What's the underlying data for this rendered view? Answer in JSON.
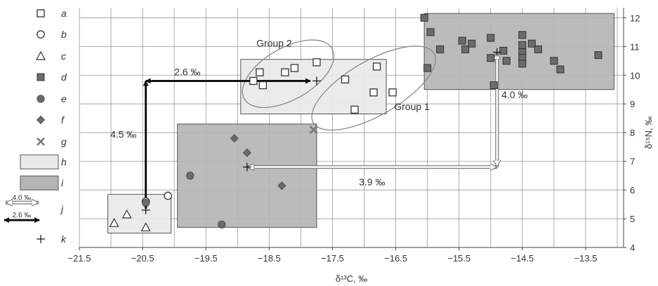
{
  "chart_data": {
    "type": "scatter",
    "xlabel": "δ¹³C, ‰",
    "ylabel": "δ¹⁵N, ‰",
    "xlim": [
      -21.5,
      -12.9
    ],
    "ylim": [
      4,
      12.35
    ],
    "xticks": [
      -21.5,
      -20.5,
      -19.5,
      -18.5,
      -17.5,
      -16.5,
      -15.5,
      -14.5,
      -13.5
    ],
    "xtick_labels": [
      "−21.5",
      "−20.5",
      "−19.5",
      "−18.5",
      "−17.5",
      "−16.5",
      "−15.5",
      "−14.5",
      "−13.5"
    ],
    "yticks": [
      4,
      5,
      6,
      7,
      8,
      9,
      10,
      11,
      12
    ],
    "ytick_labels": [
      "4",
      "5",
      "6",
      "7",
      "8",
      "9",
      "10",
      "11",
      "12"
    ],
    "x_grid_step": 0.5,
    "grid": true,
    "legend": {
      "position": "left",
      "entries": [
        {
          "key": "a",
          "symbol": "square-open"
        },
        {
          "key": "b",
          "symbol": "circle-open"
        },
        {
          "key": "c",
          "symbol": "triangle-open"
        },
        {
          "key": "d",
          "symbol": "square-filled"
        },
        {
          "key": "e",
          "symbol": "circle-filled"
        },
        {
          "key": "f",
          "symbol": "diamond-filled"
        },
        {
          "key": "g",
          "symbol": "x-mark"
        },
        {
          "key": "h",
          "symbol": "box-light"
        },
        {
          "key": "i",
          "symbol": "box-dark"
        },
        {
          "key": "j",
          "symbol": "arrows",
          "labels": [
            "4.0 ‰",
            "2.6 ‰"
          ]
        },
        {
          "key": "k",
          "symbol": "plus"
        }
      ]
    },
    "series": [
      {
        "name": "a",
        "marker": "square-open",
        "points": [
          [
            -18.75,
            9.8
          ],
          [
            -18.65,
            10.1
          ],
          [
            -18.6,
            9.65
          ],
          [
            -18.25,
            10.1
          ],
          [
            -18.1,
            10.25
          ],
          [
            -17.75,
            10.45
          ],
          [
            -17.3,
            9.85
          ],
          [
            -17.15,
            8.8
          ],
          [
            -16.85,
            9.4
          ],
          [
            -16.8,
            10.3
          ],
          [
            -16.55,
            9.4
          ]
        ]
      },
      {
        "name": "b",
        "marker": "circle-open",
        "points": [
          [
            -20.45,
            5.6
          ],
          [
            -20.1,
            5.8
          ]
        ]
      },
      {
        "name": "c",
        "marker": "triangle-open",
        "points": [
          [
            -20.95,
            4.85
          ],
          [
            -20.75,
            5.15
          ],
          [
            -20.45,
            4.7
          ]
        ]
      },
      {
        "name": "d",
        "marker": "square-filled",
        "points": [
          [
            -16.05,
            12
          ],
          [
            -16,
            10.25
          ],
          [
            -15.95,
            11.5
          ],
          [
            -15.8,
            10.9
          ],
          [
            -15.45,
            11.2
          ],
          [
            -15.4,
            10.9
          ],
          [
            -15.3,
            11.1
          ],
          [
            -15.0,
            11.3
          ],
          [
            -15.0,
            10.6
          ],
          [
            -14.95,
            9.65
          ],
          [
            -14.8,
            10.85
          ],
          [
            -14.75,
            10.5
          ],
          [
            -14.5,
            11.4
          ],
          [
            -14.5,
            11.05
          ],
          [
            -14.5,
            10.8
          ],
          [
            -14.5,
            10.6
          ],
          [
            -14.5,
            10.4
          ],
          [
            -14.35,
            11.1
          ],
          [
            -14.25,
            10.9
          ],
          [
            -14.0,
            10.5
          ],
          [
            -13.9,
            10.2
          ],
          [
            -13.3,
            10.7
          ]
        ]
      },
      {
        "name": "e",
        "marker": "circle-filled",
        "points": [
          [
            -20.45,
            5.55
          ],
          [
            -19.75,
            6.5
          ],
          [
            -19.25,
            4.8
          ]
        ]
      },
      {
        "name": "f",
        "marker": "diamond-filled",
        "points": [
          [
            -19.05,
            7.8
          ],
          [
            -18.85,
            7.3
          ],
          [
            -18.3,
            6.15
          ]
        ]
      },
      {
        "name": "g",
        "marker": "x-mark",
        "points": [
          [
            -17.8,
            8.1
          ]
        ]
      },
      {
        "name": "k",
        "marker": "plus",
        "points": [
          [
            -20.45,
            5.3
          ],
          [
            -18.85,
            6.8
          ],
          [
            -17.75,
            9.8
          ],
          [
            -14.9,
            10.8
          ]
        ]
      }
    ],
    "boxes": [
      {
        "legend": "h",
        "x": [
          -21.05,
          -20.05
        ],
        "y": [
          4.5,
          5.85
        ]
      },
      {
        "legend": "h",
        "x": [
          -18.95,
          -16.65
        ],
        "y": [
          8.65,
          10.55
        ]
      },
      {
        "legend": "i",
        "x": [
          -19.95,
          -17.75
        ],
        "y": [
          4.7,
          8.3
        ]
      },
      {
        "legend": "i",
        "x": [
          -16.05,
          -13.05
        ],
        "y": [
          9.5,
          12.15
        ]
      }
    ],
    "ellipses": [
      {
        "label": "Group 2",
        "center": [
          -18.2,
          10.05
        ],
        "radius_x": 0.8,
        "radius_y": 0.9,
        "rotation_deg": -30
      },
      {
        "label": "Group 1",
        "center": [
          -16.85,
          9.55
        ],
        "radius_x": 1.1,
        "radius_y": 0.95,
        "rotation_deg": -30
      }
    ],
    "arrows": [
      {
        "style": "dark",
        "label": "2.6 ‰",
        "from": [
          -20.45,
          9.8
        ],
        "to": [
          -17.85,
          9.8
        ]
      },
      {
        "style": "dark",
        "label": "4.5 ‰",
        "from": [
          -20.45,
          5.35
        ],
        "to": [
          -20.45,
          9.8
        ]
      },
      {
        "style": "light",
        "label": "3.9 ‰",
        "from": [
          -18.85,
          6.8
        ],
        "to": [
          -14.9,
          6.8
        ]
      },
      {
        "style": "light",
        "label": "4.0 ‰",
        "from": [
          -14.9,
          6.8
        ],
        "to": [
          -14.9,
          10.8
        ]
      }
    ]
  }
}
